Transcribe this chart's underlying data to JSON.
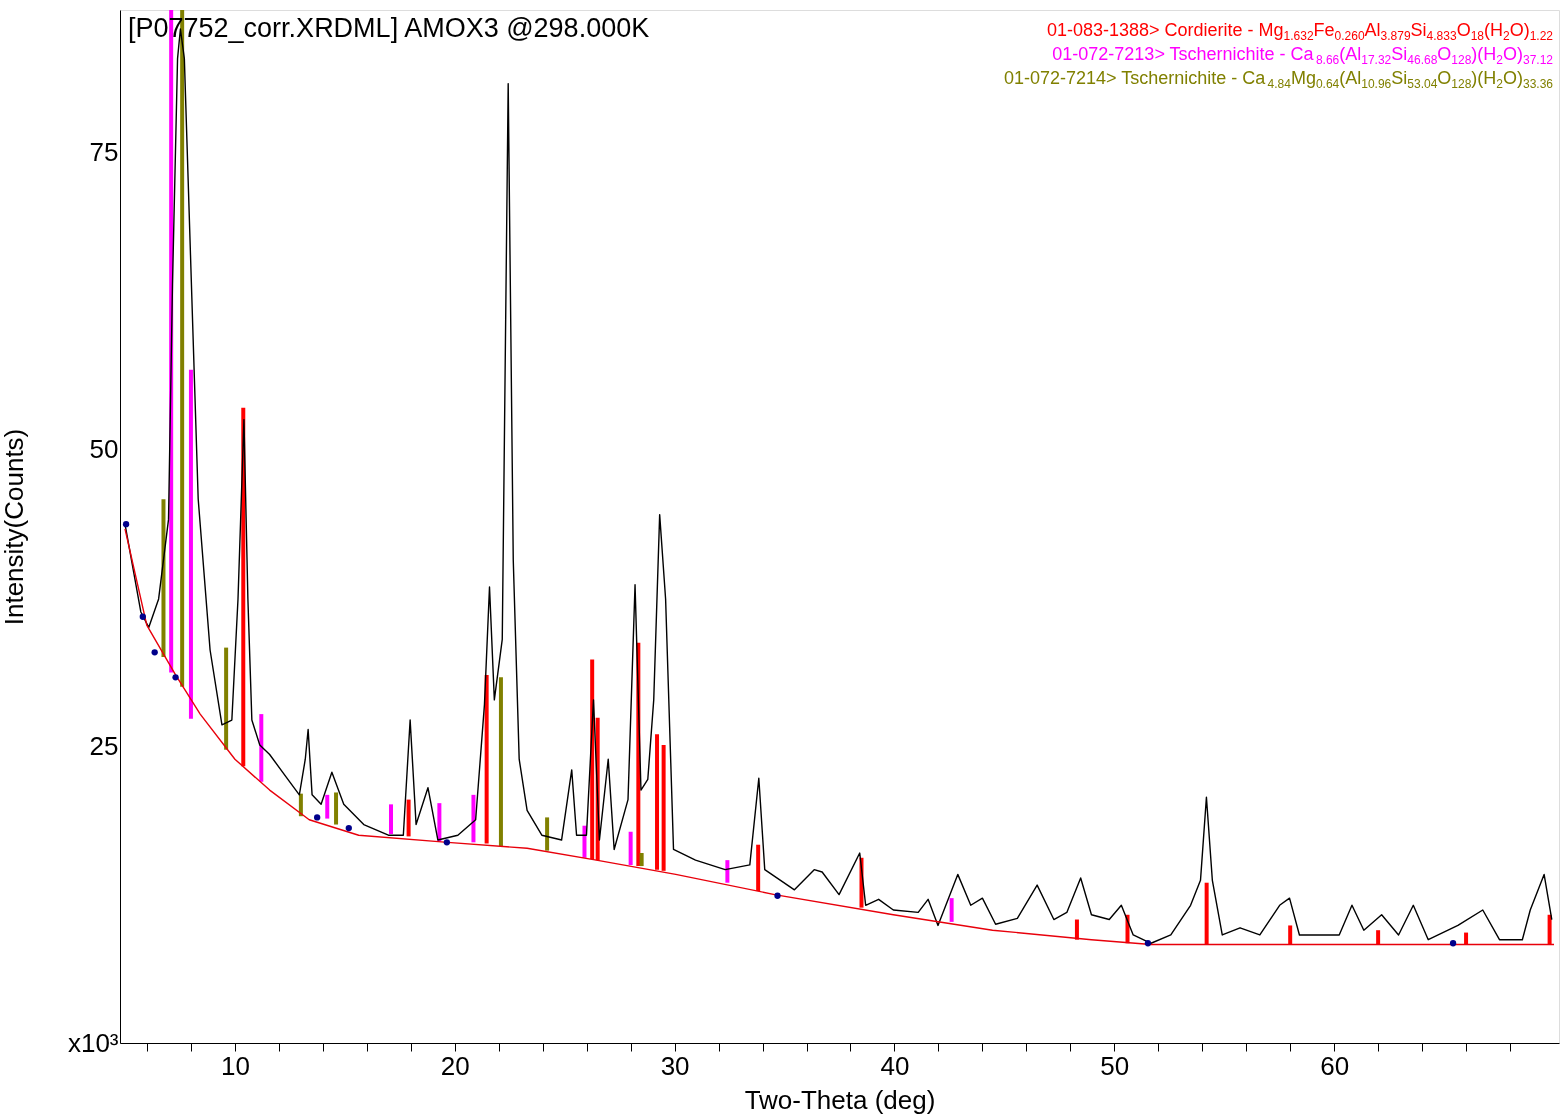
{
  "chart_data": {
    "type": "line",
    "title": "[P07752_corr.XRDML] AMOX3 @298.000K",
    "xlabel": "Two-Theta (deg)",
    "ylabel": "Intensity(Counts)",
    "xlim": [
      5,
      70
    ],
    "ylim": [
      0,
      87
    ],
    "xticks": [
      {
        "value": 6,
        "label": null
      },
      {
        "value": 8,
        "label": null
      },
      10,
      {
        "value": 12,
        "label": null
      },
      {
        "value": 14,
        "label": null
      },
      {
        "value": 16,
        "label": null
      },
      {
        "value": 18,
        "label": null
      },
      20,
      {
        "value": 22,
        "label": null
      },
      {
        "value": 24,
        "label": null
      },
      {
        "value": 26,
        "label": null
      },
      {
        "value": 28,
        "label": null
      },
      30,
      {
        "value": 32,
        "label": null
      },
      {
        "value": 34,
        "label": null
      },
      {
        "value": 36,
        "label": null
      },
      {
        "value": 38,
        "label": null
      },
      40,
      {
        "value": 42,
        "label": null
      },
      {
        "value": 44,
        "label": null
      },
      {
        "value": 46,
        "label": null
      },
      {
        "value": 48,
        "label": null
      },
      50,
      {
        "value": 52,
        "label": null
      },
      {
        "value": 54,
        "label": null
      },
      {
        "value": 56,
        "label": null
      },
      {
        "value": 58,
        "label": null
      },
      60,
      {
        "value": 62,
        "label": null
      },
      {
        "value": 64,
        "label": null
      },
      {
        "value": 66,
        "label": null
      },
      {
        "value": 68,
        "label": null
      }
    ],
    "yticks": [
      {
        "value": 0,
        "label": "x10³"
      },
      25,
      50,
      75
    ],
    "grid": false,
    "series": [
      {
        "color": "#000000",
        "x": [
          5.0,
          5.72,
          6.08,
          6.53,
          6.98,
          7.16,
          7.39,
          7.52,
          7.7,
          7.97,
          8.33,
          8.87,
          9.41,
          9.86,
          10.14,
          10.41,
          10.59,
          10.77,
          11.13,
          11.58,
          12.25,
          12.93,
          13.2,
          13.33,
          13.51,
          13.92,
          14.41,
          14.95,
          15.86,
          16.98,
          17.66,
          17.97,
          18.24,
          18.78,
          19.23,
          20.14,
          20.95,
          21.35,
          21.58,
          21.8,
          22.16,
          22.43,
          22.66,
          22.93,
          23.29,
          23.96,
          24.86,
          25.32,
          25.54,
          25.99,
          26.31,
          26.58,
          26.98,
          27.25,
          27.88,
          28.2,
          28.47,
          28.78,
          29.05,
          29.32,
          29.59,
          29.95,
          30.95,
          32.3,
          33.42,
          33.83,
          34.1,
          35.45,
          36.35,
          36.71,
          37.48,
          38.42,
          38.69,
          39.28,
          39.95,
          41.08,
          41.53,
          41.98,
          42.88,
          43.47,
          44.0,
          44.6,
          45.59,
          46.49,
          47.25,
          47.84,
          48.47,
          48.96,
          49.77,
          50.32,
          50.86,
          51.67,
          52.57,
          53.47,
          53.92,
          54.19,
          54.46,
          54.91,
          55.72,
          56.62,
          57.52,
          57.97,
          58.42,
          59.32,
          60.23,
          60.81,
          61.35,
          62.16,
          62.93,
          63.6,
          64.28,
          65.63,
          66.76,
          67.52,
          68.56,
          68.92,
          69.55,
          69.9
        ],
        "values": [
          43.7,
          36.3,
          35.0,
          37.4,
          44.1,
          63.9,
          82.9,
          85.4,
          82.9,
          66.9,
          45.8,
          33.1,
          26.8,
          27.2,
          37.4,
          52.5,
          37.4,
          27.2,
          25.1,
          24.3,
          22.6,
          20.9,
          23.9,
          26.4,
          20.9,
          20.1,
          22.8,
          20.1,
          18.4,
          17.5,
          17.5,
          27.2,
          18.4,
          21.5,
          17.1,
          17.5,
          18.8,
          28.5,
          38.4,
          28.9,
          34.0,
          80.8,
          40.7,
          23.9,
          19.6,
          17.5,
          17.1,
          23.0,
          17.5,
          17.5,
          28.9,
          17.1,
          23.9,
          16.3,
          20.5,
          38.6,
          21.3,
          22.2,
          28.9,
          44.5,
          37.4,
          16.3,
          15.4,
          14.6,
          15.0,
          22.3,
          14.6,
          12.9,
          14.6,
          14.4,
          12.5,
          16.0,
          11.6,
          12.1,
          11.2,
          11.0,
          12.1,
          9.9,
          14.2,
          11.6,
          12.2,
          10.0,
          10.5,
          13.3,
          10.4,
          11.0,
          13.9,
          10.8,
          10.4,
          11.6,
          9.1,
          8.4,
          9.1,
          11.6,
          13.7,
          20.7,
          13.7,
          9.1,
          9.7,
          9.1,
          11.6,
          12.2,
          9.1,
          9.1,
          9.1,
          11.6,
          9.5,
          10.8,
          9.1,
          11.6,
          8.7,
          9.9,
          11.2,
          8.7,
          8.7,
          11.2,
          14.2,
          10.4
        ]
      },
      {
        "type": "line",
        "color": "#e8000b",
        "x": [
          5.0,
          5.99,
          7.3,
          8.42,
          10.0,
          11.58,
          13.38,
          15.63,
          19.68,
          23.29,
          26.44,
          30.05,
          34.55,
          39.95,
          44.46,
          48.96,
          51.67,
          70.0
        ],
        "values": [
          43.3,
          35.2,
          31.0,
          27.7,
          23.9,
          21.3,
          18.8,
          17.5,
          16.9,
          16.4,
          15.4,
          14.2,
          12.5,
          10.8,
          9.5,
          8.7,
          8.3,
          8.3
        ]
      },
      {
        "type": "bar",
        "name": "01-083-1388> Cordierite - Mg$_{1.632}$Fe$_{0.260}$Al$_{3.879}$Si$_{4.833}$O$_{18}$(H$_{2}$O)$_{1.22}$",
        "color": "#ff0000",
        "x": [
          10.38,
          17.9,
          21.45,
          26.25,
          26.5,
          28.35,
          29.2,
          29.5,
          33.8,
          38.5,
          48.3,
          50.6,
          54.2,
          58.0,
          62.0,
          66.0,
          69.8
        ],
        "base": [
          23.3,
          17.4,
          16.8,
          15.5,
          15.4,
          14.9,
          14.6,
          14.5,
          12.8,
          11.4,
          8.7,
          8.4,
          8.3,
          8.3,
          8.3,
          8.3,
          8.3
        ],
        "values": [
          30.2,
          3.1,
          14.2,
          16.8,
          12.0,
          18.8,
          11.4,
          10.6,
          3.9,
          4.2,
          1.7,
          2.4,
          5.2,
          1.6,
          1.2,
          1.0,
          2.5
        ]
      },
      {
        "type": "bar",
        "name": "01-072-7213> Tschernichite - Ca$_{8.66}$(Al$_{17.32}$Si$_{46.68}$O$_{128}$)(H$_{2}$O)$_{37.12}$",
        "color": "#ff00ff",
        "x": [
          7.1,
          8.0,
          11.2,
          14.2,
          17.1,
          19.3,
          20.85,
          25.9,
          28.0,
          32.4,
          42.6
        ],
        "base": [
          31.2,
          27.3,
          22.0,
          18.9,
          17.6,
          17.0,
          16.9,
          15.6,
          15.0,
          13.5,
          10.2
        ],
        "values": [
          55.8,
          29.4,
          5.7,
          2.0,
          2.5,
          3.2,
          4.0,
          2.7,
          2.8,
          1.9,
          2.0
        ]
      },
      {
        "type": "bar",
        "name": "01-072-7214> Tschernichite - Ca$_{4.84}$Mg$_{0.64}$(Al$_{10.96}$Si$_{53.04}$O$_{128}$)(H$_{2}$O)$_{33.36}$",
        "color": "#808000",
        "x": [
          6.75,
          7.6,
          9.6,
          13.0,
          14.6,
          22.1,
          24.2,
          28.5
        ],
        "base": [
          32.5,
          30.0,
          24.7,
          19.1,
          18.4,
          16.6,
          16.2,
          14.9
        ],
        "values": [
          13.3,
          57.0,
          8.6,
          1.9,
          2.7,
          14.2,
          2.8,
          1.1
        ]
      },
      {
        "type": "scatter",
        "color": "#00008b",
        "marker": "circle",
        "x": [
          5.05,
          5.81,
          6.35,
          7.3,
          13.74,
          15.18,
          19.64,
          34.68,
          51.53,
          65.41
        ],
        "values": [
          43.7,
          35.9,
          32.9,
          30.8,
          19.0,
          18.1,
          16.9,
          12.4,
          8.4,
          8.4
        ]
      }
    ]
  }
}
